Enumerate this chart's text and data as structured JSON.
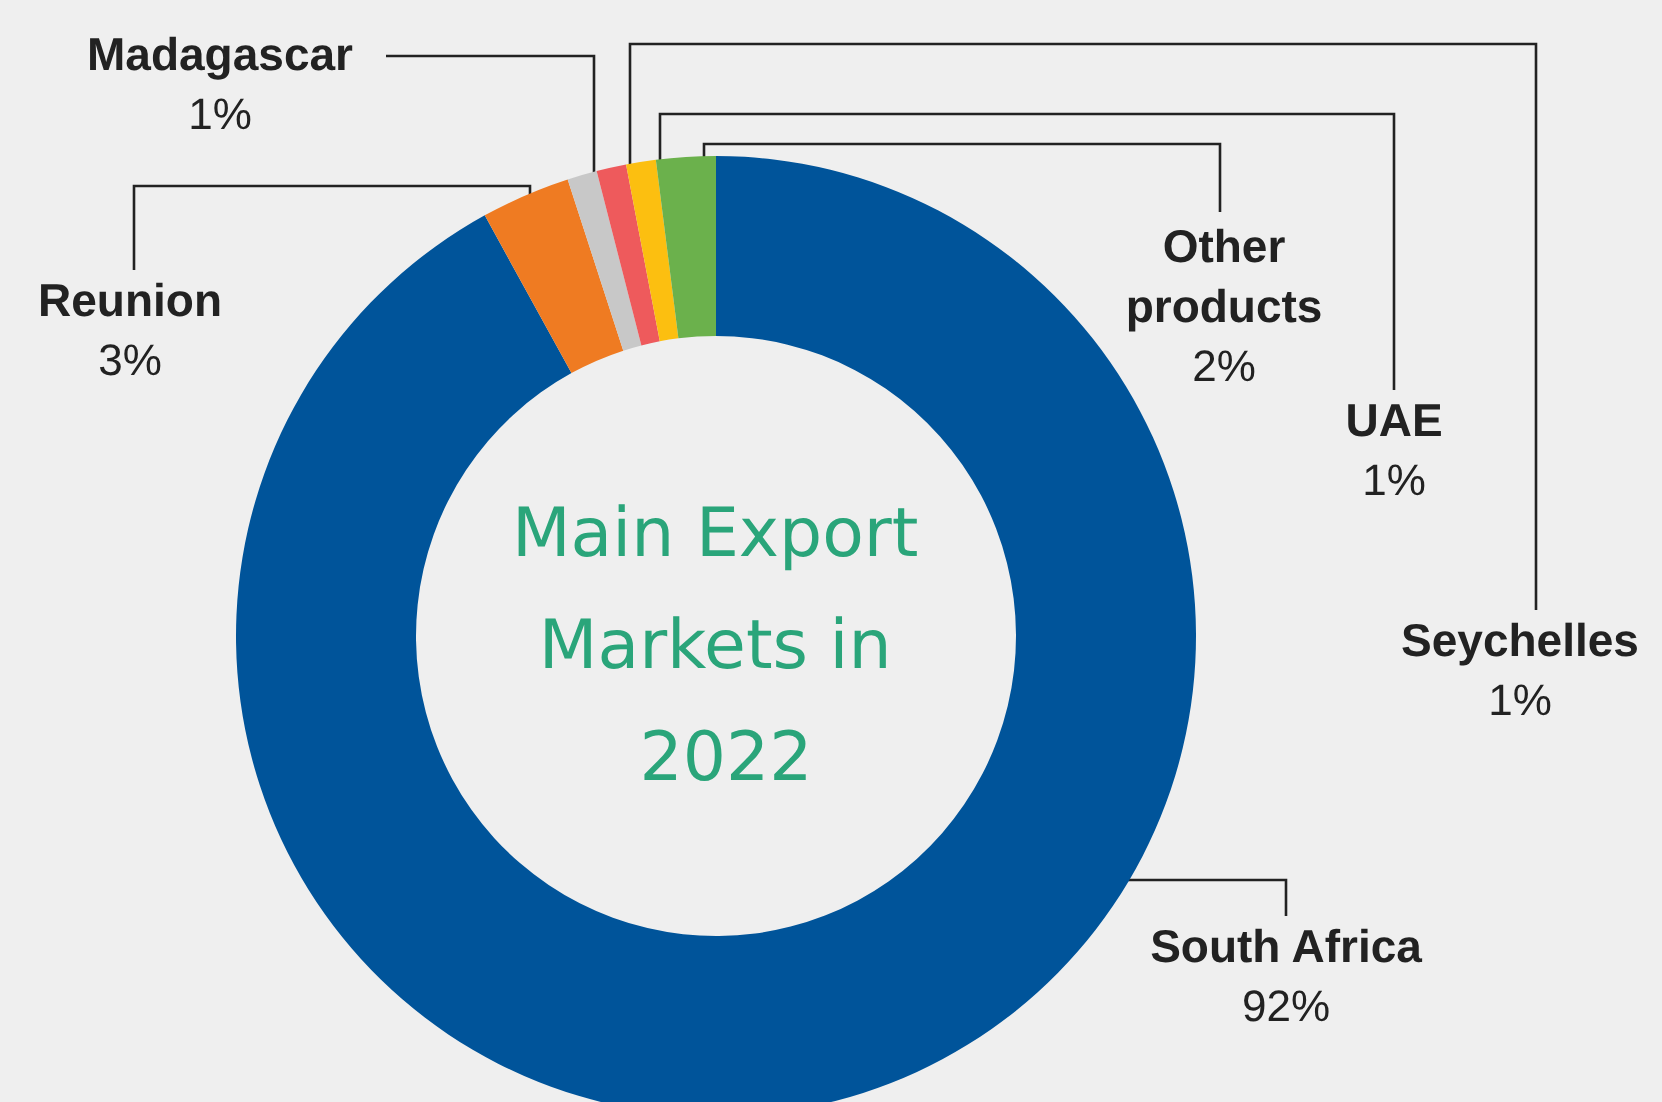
{
  "chart_data": {
    "type": "donut",
    "title": "Main Export Markets in 2022",
    "categories": [
      "South Africa",
      "Reunion",
      "Madagascar",
      "Seychelles",
      "UAE",
      "Other products"
    ],
    "values": [
      92,
      3,
      1,
      1,
      1,
      2
    ],
    "value_labels": [
      "92%",
      "3%",
      "1%",
      "1%",
      "1%",
      "2%"
    ],
    "colors": [
      "#00549a",
      "#ef7b22",
      "#c8c8c8",
      "#ee5a5c",
      "#fcbf10",
      "#6bb14c"
    ],
    "legend": false
  }
}
